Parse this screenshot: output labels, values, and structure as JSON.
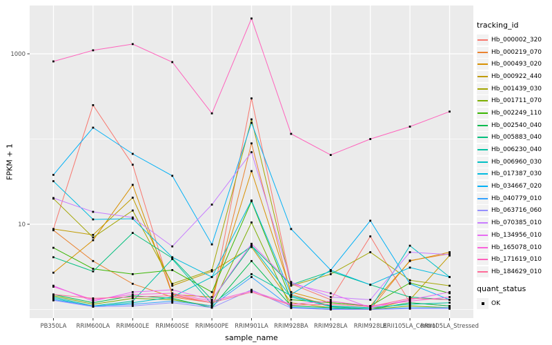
{
  "axes": {
    "x_title": "sample_name",
    "y_title": "FPKM + 1"
  },
  "legend": {
    "tracking_title": "tracking_id",
    "quant_title": "quant_status",
    "quant_items": [
      "OK"
    ]
  },
  "style": {
    "panel_bg": "#EBEBEB",
    "grid_color": "#FFFFFF",
    "tick_label_color": "#4D4D4D",
    "tick_mark_color": "#333333",
    "point_color": "#000000"
  },
  "chart_data": {
    "type": "line",
    "title": "",
    "xlabel": "sample_name",
    "ylabel": "FPKM + 1",
    "y_scale": "log10",
    "y_breaks": [
      10,
      1000
    ],
    "y_break_labels": [
      "10",
      "1000"
    ],
    "y_minor_breaks": [
      1,
      100
    ],
    "ylim": [
      0.79,
      3550
    ],
    "grid": true,
    "legend_position": "right",
    "marker": "black-square",
    "categories": [
      "PB350LA",
      "RRIM600LA",
      "RRIM600LE",
      "RRIM600SE",
      "RRIM600PE",
      "RRIM901LA",
      "RRIM928BA",
      "RRIM928LA",
      "RRIM928LE",
      "RRII105LA_Control",
      "RRII105LA_Stressed"
    ],
    "series": [
      {
        "name": "Hb_000002_320",
        "color": "#F8766D",
        "values": [
          8.8,
          250,
          50,
          1.5,
          1.2,
          300,
          2.0,
          1.3,
          7.2,
          1.2,
          1.1
        ]
      },
      {
        "name": "Hb_000219_070",
        "color": "#EA8331",
        "values": [
          8.5,
          3.7,
          2.0,
          1.4,
          1.2,
          89,
          1.5,
          1.1,
          1.0,
          3.75,
          4.5
        ]
      },
      {
        "name": "Hb_000493_020",
        "color": "#D89000",
        "values": [
          2.7,
          6.5,
          29,
          1.5,
          1.4,
          42,
          1.6,
          1.2,
          1.1,
          3.7,
          4.7
        ]
      },
      {
        "name": "Hb_000922_440",
        "color": "#C09B00",
        "values": [
          8.8,
          7.5,
          20.5,
          1.9,
          2.8,
          5.4,
          1.2,
          1.05,
          1.0,
          1.3,
          4.3
        ]
      },
      {
        "name": "Hb_001439_030",
        "color": "#A3A500",
        "values": [
          20,
          7.0,
          14.5,
          2.0,
          2.9,
          170,
          1.9,
          2.6,
          4.7,
          2.2,
          1.9
        ]
      },
      {
        "name": "Hb_001711_070",
        "color": "#7CAE00",
        "values": [
          1.45,
          1.15,
          1.35,
          1.3,
          1.1,
          10.5,
          1.05,
          1.0,
          1.0,
          1.1,
          1.05
        ]
      },
      {
        "name": "Hb_002249_110",
        "color": "#39B600",
        "values": [
          5.3,
          3.0,
          2.6,
          2.9,
          1.6,
          18.6,
          1.3,
          1.2,
          1.1,
          2.05,
          1.55
        ]
      },
      {
        "name": "Hb_002540_040",
        "color": "#00BB4E",
        "values": [
          1.5,
          1.2,
          1.45,
          1.35,
          1.05,
          3.7,
          1.1,
          1.05,
          1.0,
          1.2,
          1.1
        ]
      },
      {
        "name": "Hb_005883_040",
        "color": "#00BF7D",
        "values": [
          4.1,
          2.8,
          7.9,
          4.0,
          1.3,
          5.6,
          1.95,
          2.8,
          1.95,
          1.4,
          1.3
        ]
      },
      {
        "name": "Hb_006230_040",
        "color": "#00C1A3",
        "values": [
          1.4,
          1.1,
          1.25,
          3.9,
          1.15,
          2.6,
          1.45,
          1.1,
          1.05,
          1.15,
          1.2
        ]
      },
      {
        "name": "Hb_006960_030",
        "color": "#00BFC4",
        "values": [
          1.35,
          1.08,
          1.2,
          1.4,
          2.4,
          5.6,
          1.4,
          1.08,
          1.02,
          5.6,
          2.4
        ]
      },
      {
        "name": "Hb_017387_030",
        "color": "#00BAE0",
        "values": [
          32,
          11.4,
          11.6,
          4.1,
          2.4,
          19,
          1.5,
          2.9,
          1.95,
          3.1,
          2.4
        ]
      },
      {
        "name": "Hb_034667_020",
        "color": "#00B0F6",
        "values": [
          38,
          136,
          67,
          37,
          5.8,
          155,
          8.8,
          2.9,
          11,
          2.0,
          1.3
        ]
      },
      {
        "name": "Hb_040779_010",
        "color": "#35A2FF",
        "values": [
          1.3,
          1.1,
          1.15,
          1.25,
          1.1,
          2.4,
          1.06,
          1.02,
          1.0,
          1.05,
          1.05
        ]
      },
      {
        "name": "Hb_063716_060",
        "color": "#9590FF",
        "values": [
          1.28,
          1.08,
          1.1,
          1.2,
          1.05,
          1.7,
          1.04,
          1.0,
          1.0,
          1.02,
          1.02
        ]
      },
      {
        "name": "Hb_070385_010",
        "color": "#C77CFF",
        "values": [
          20.3,
          14,
          12,
          5.5,
          17,
          70,
          2.1,
          1.4,
          1.3,
          4.7,
          4.4
        ]
      },
      {
        "name": "Hb_134956_010",
        "color": "#E76BF3",
        "values": [
          1.9,
          1.25,
          1.6,
          1.7,
          1.3,
          5.9,
          2.0,
          1.55,
          1.05,
          1.3,
          1.6
        ]
      },
      {
        "name": "Hb_165078_010",
        "color": "#FA62DB",
        "values": [
          1.85,
          1.3,
          1.5,
          1.55,
          1.25,
          1.65,
          1.15,
          1.25,
          1.1,
          1.25,
          1.4
        ]
      },
      {
        "name": "Hb_171619_010",
        "color": "#FF62BC",
        "values": [
          815,
          1100,
          1300,
          800,
          200,
          2600,
          115,
          65,
          100,
          140,
          210
        ]
      },
      {
        "name": "Hb_184629_010",
        "color": "#FF6A98",
        "values": [
          1.5,
          1.35,
          1.4,
          1.45,
          1.2,
          1.6,
          1.12,
          1.15,
          1.08,
          1.35,
          1.3
        ]
      }
    ]
  }
}
